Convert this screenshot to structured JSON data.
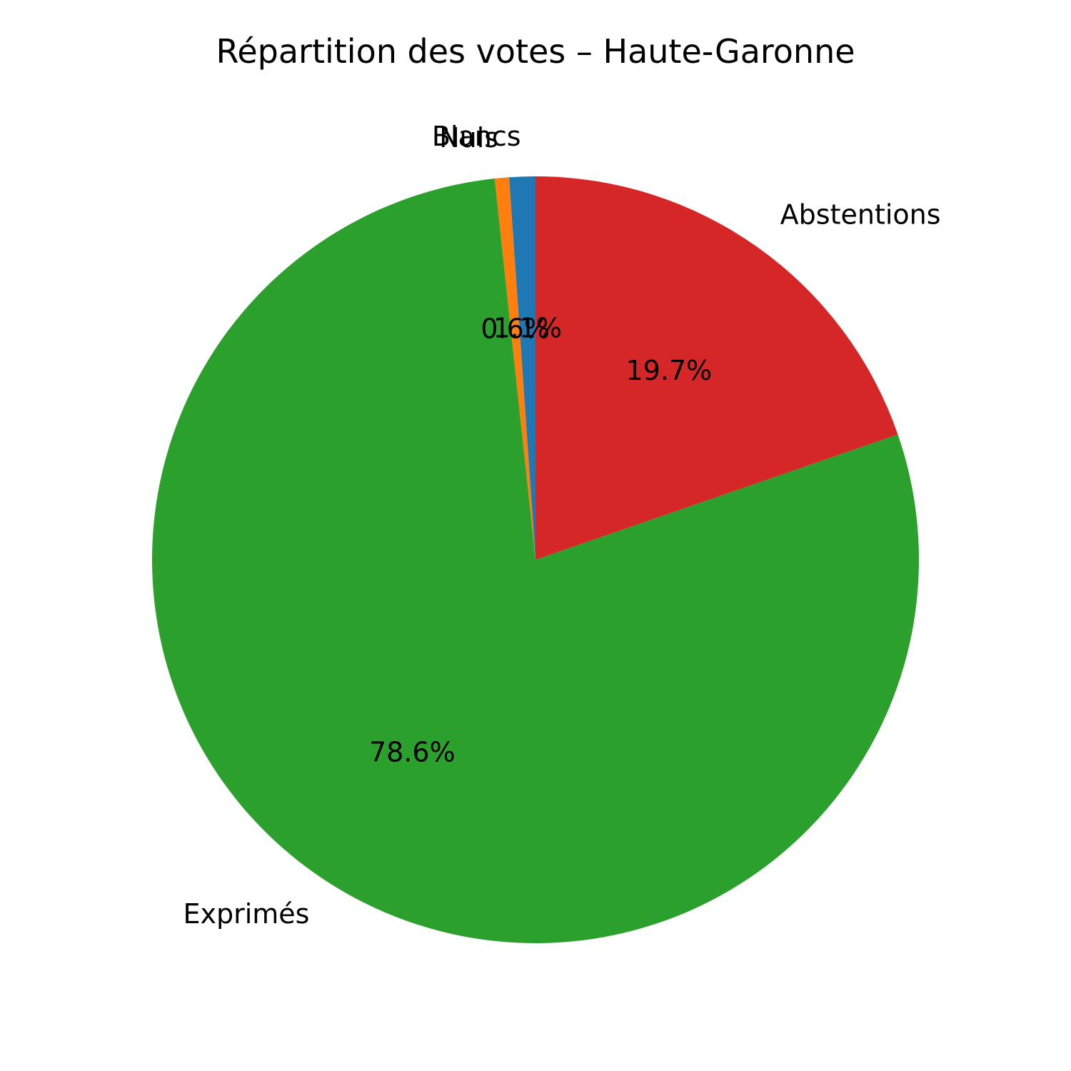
{
  "chart_data": {
    "type": "pie",
    "title": "Répartition des votes – Haute-Garonne",
    "categories": [
      "Blancs",
      "Nuls",
      "Exprimés",
      "Abstentions"
    ],
    "values": [
      1.1,
      0.6,
      78.6,
      19.7
    ],
    "value_labels": [
      "1.1%",
      "0.6%",
      "78.6%",
      "19.7%"
    ],
    "colors": [
      "#1f77b4",
      "#ff7f0e",
      "#2ca02c",
      "#d62728"
    ],
    "start_angle_deg": 90,
    "direction": "counterclockwise"
  }
}
